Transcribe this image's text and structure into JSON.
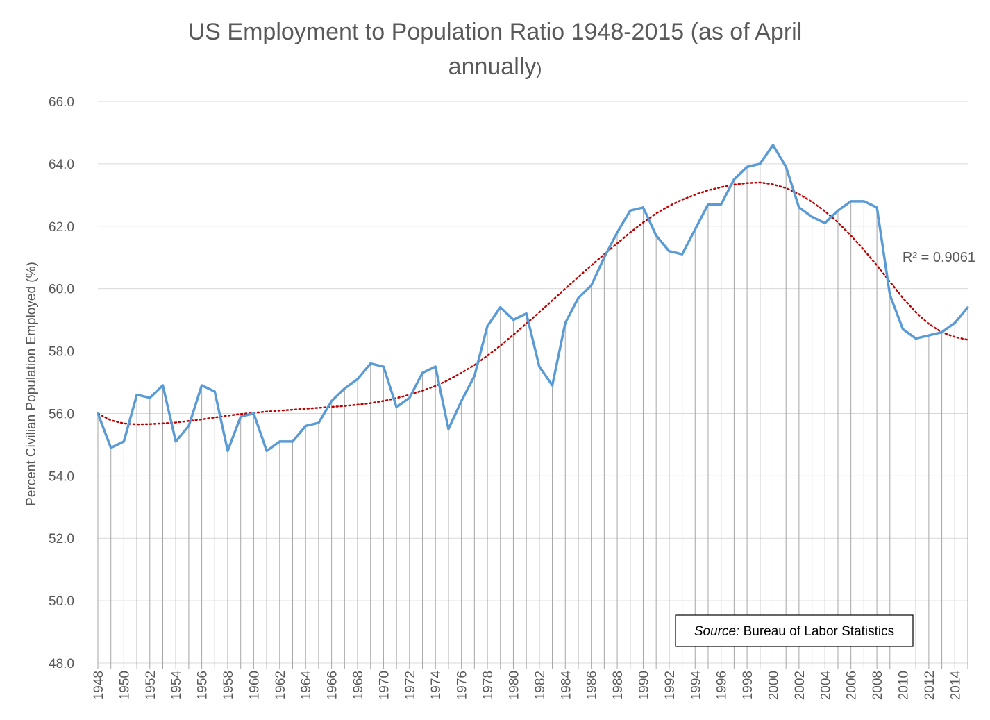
{
  "chart_data": {
    "type": "line",
    "title": "US Employment to Population Ratio 1948-2015 (as of April annually)",
    "title_line1": "US Employment to Population Ratio 1948-2015 (as of April",
    "title_line2": "annually",
    "title_line2_paren": ")",
    "ylabel": "Percent Civilian Population Employed (%)",
    "ylim": [
      48,
      66
    ],
    "yticks": [
      48,
      50,
      52,
      54,
      56,
      58,
      60,
      62,
      64,
      66
    ],
    "ytick_labels": [
      "48.0",
      "50.0",
      "52.0",
      "54.0",
      "56.0",
      "58.0",
      "60.0",
      "62.0",
      "64.0",
      "66.0"
    ],
    "x": [
      1948,
      1949,
      1950,
      1951,
      1952,
      1953,
      1954,
      1955,
      1956,
      1957,
      1958,
      1959,
      1960,
      1961,
      1962,
      1963,
      1964,
      1965,
      1966,
      1967,
      1968,
      1969,
      1970,
      1971,
      1972,
      1973,
      1974,
      1975,
      1976,
      1977,
      1978,
      1979,
      1980,
      1981,
      1982,
      1983,
      1984,
      1985,
      1986,
      1987,
      1988,
      1989,
      1990,
      1991,
      1992,
      1993,
      1994,
      1995,
      1996,
      1997,
      1998,
      1999,
      2000,
      2001,
      2002,
      2003,
      2004,
      2005,
      2006,
      2007,
      2008,
      2009,
      2010,
      2011,
      2012,
      2013,
      2014,
      2015
    ],
    "xtick_labels": [
      "1948",
      "1950",
      "1952",
      "1954",
      "1956",
      "1958",
      "1960",
      "1962",
      "1964",
      "1966",
      "1968",
      "1970",
      "1972",
      "1974",
      "1976",
      "1978",
      "1980",
      "1982",
      "1984",
      "1986",
      "1988",
      "1990",
      "1992",
      "1994",
      "1996",
      "1998",
      "2000",
      "2002",
      "2004",
      "2006",
      "2008",
      "2010",
      "2012",
      "2014"
    ],
    "series": [
      {
        "color": "#5b9bd5",
        "values": [
          56.0,
          54.9,
          55.1,
          56.6,
          56.5,
          56.9,
          55.1,
          55.6,
          56.9,
          56.7,
          54.8,
          55.9,
          56.0,
          54.8,
          55.1,
          55.1,
          55.6,
          55.7,
          56.4,
          56.8,
          57.1,
          57.6,
          57.5,
          56.2,
          56.5,
          57.3,
          57.5,
          55.5,
          56.4,
          57.2,
          58.8,
          59.4,
          59.0,
          59.2,
          57.5,
          56.9,
          58.9,
          59.7,
          60.1,
          61.0,
          61.8,
          62.5,
          62.6,
          61.7,
          61.2,
          61.1,
          61.9,
          62.7,
          62.7,
          63.5,
          63.9,
          64.0,
          64.6,
          63.9,
          62.6,
          62.3,
          62.1,
          62.5,
          62.8,
          62.8,
          62.6,
          59.8,
          58.7,
          58.4,
          58.5,
          58.6,
          58.9,
          59.4
        ]
      }
    ],
    "trendline": {
      "type": "polynomial",
      "color": "#c00000",
      "label": "R² = 0.9061",
      "values": [
        56.0,
        55.78,
        55.68,
        55.65,
        55.66,
        55.68,
        55.71,
        55.76,
        55.81,
        55.87,
        55.93,
        55.98,
        56.02,
        56.06,
        56.09,
        56.12,
        56.15,
        56.18,
        56.21,
        56.24,
        56.28,
        56.33,
        56.4,
        56.49,
        56.6,
        56.73,
        56.88,
        57.07,
        57.3,
        57.55,
        57.85,
        58.17,
        58.52,
        58.88,
        59.24,
        59.62,
        60.0,
        60.37,
        60.74,
        61.1,
        61.45,
        61.8,
        62.12,
        62.41,
        62.65,
        62.85,
        63.01,
        63.15,
        63.25,
        63.33,
        63.38,
        63.4,
        63.34,
        63.22,
        63.03,
        62.78,
        62.48,
        62.12,
        61.7,
        61.24,
        60.74,
        60.22,
        59.7,
        59.24,
        58.87,
        58.6,
        58.45,
        58.36
      ]
    },
    "grid": "vertical drop lines and horizontal gridlines",
    "annotation": {
      "source_label": "Source:",
      "source_text": " Bureau of Labor Statistics"
    }
  }
}
